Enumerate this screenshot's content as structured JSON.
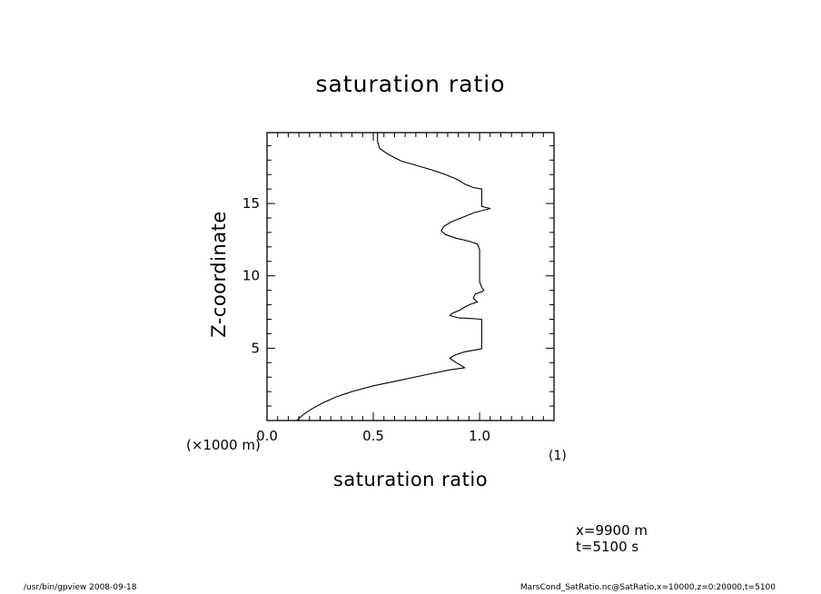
{
  "chart_data": {
    "type": "line",
    "title": "saturation ratio",
    "xlabel": "saturation ratio",
    "ylabel": "Z-coordinate",
    "x_unit_note": "(×1000 m)",
    "x_scale_note": "(1)",
    "xlim": [
      0.0,
      1.35
    ],
    "ylim": [
      0,
      19.9
    ],
    "x_ticks": [
      {
        "value": 0.0,
        "label": "0.0"
      },
      {
        "value": 0.5,
        "label": "0.5"
      },
      {
        "value": 1.0,
        "label": "1.0"
      }
    ],
    "y_ticks": [
      {
        "value": 5,
        "label": "5"
      },
      {
        "value": 10,
        "label": "10"
      },
      {
        "value": 15,
        "label": "15"
      }
    ],
    "series": [
      {
        "points": [
          [
            0.14,
            0.0
          ],
          [
            0.17,
            0.4
          ],
          [
            0.21,
            0.8
          ],
          [
            0.26,
            1.2
          ],
          [
            0.32,
            1.6
          ],
          [
            0.4,
            2.0
          ],
          [
            0.5,
            2.4
          ],
          [
            0.63,
            2.8
          ],
          [
            0.76,
            3.2
          ],
          [
            0.86,
            3.5
          ],
          [
            0.93,
            3.65
          ],
          [
            0.92,
            3.75
          ],
          [
            0.89,
            4.0
          ],
          [
            0.86,
            4.3
          ],
          [
            0.88,
            4.5
          ],
          [
            0.93,
            4.75
          ],
          [
            1.01,
            4.95
          ],
          [
            1.01,
            5.5
          ],
          [
            1.01,
            6.0
          ],
          [
            1.01,
            6.6
          ],
          [
            1.01,
            7.0
          ],
          [
            0.96,
            7.05
          ],
          [
            0.9,
            7.1
          ],
          [
            0.86,
            7.25
          ],
          [
            0.87,
            7.4
          ],
          [
            0.91,
            7.65
          ],
          [
            0.93,
            7.85
          ],
          [
            0.96,
            8.05
          ],
          [
            0.99,
            8.2
          ],
          [
            0.97,
            8.45
          ],
          [
            0.98,
            8.75
          ],
          [
            1.01,
            8.9
          ],
          [
            1.02,
            9.0
          ],
          [
            1.01,
            9.2
          ],
          [
            1.0,
            9.6
          ],
          [
            1.0,
            10.2
          ],
          [
            1.0,
            11.0
          ],
          [
            1.0,
            11.8
          ],
          [
            0.99,
            12.2
          ],
          [
            0.95,
            12.4
          ],
          [
            0.89,
            12.6
          ],
          [
            0.84,
            12.85
          ],
          [
            0.82,
            13.1
          ],
          [
            0.83,
            13.4
          ],
          [
            0.87,
            13.75
          ],
          [
            0.93,
            14.1
          ],
          [
            0.98,
            14.4
          ],
          [
            1.01,
            14.5
          ],
          [
            1.05,
            14.65
          ],
          [
            1.01,
            14.8
          ],
          [
            1.01,
            15.2
          ],
          [
            1.01,
            15.7
          ],
          [
            1.01,
            16.0
          ],
          [
            0.97,
            16.1
          ],
          [
            0.93,
            16.35
          ],
          [
            0.89,
            16.7
          ],
          [
            0.84,
            17.0
          ],
          [
            0.78,
            17.3
          ],
          [
            0.71,
            17.6
          ],
          [
            0.63,
            17.95
          ],
          [
            0.57,
            18.4
          ],
          [
            0.53,
            18.8
          ],
          [
            0.52,
            19.3
          ],
          [
            0.52,
            19.9
          ]
        ]
      }
    ]
  },
  "annotations": {
    "info_x": "x=9900  m",
    "info_t": "t=5100  s",
    "footer_left": "/usr/bin/gpview   2008-09-18",
    "footer_right": "MarsCond_SatRatio.nc@SatRatio,x=10000,z=0:20000,t=5100"
  }
}
